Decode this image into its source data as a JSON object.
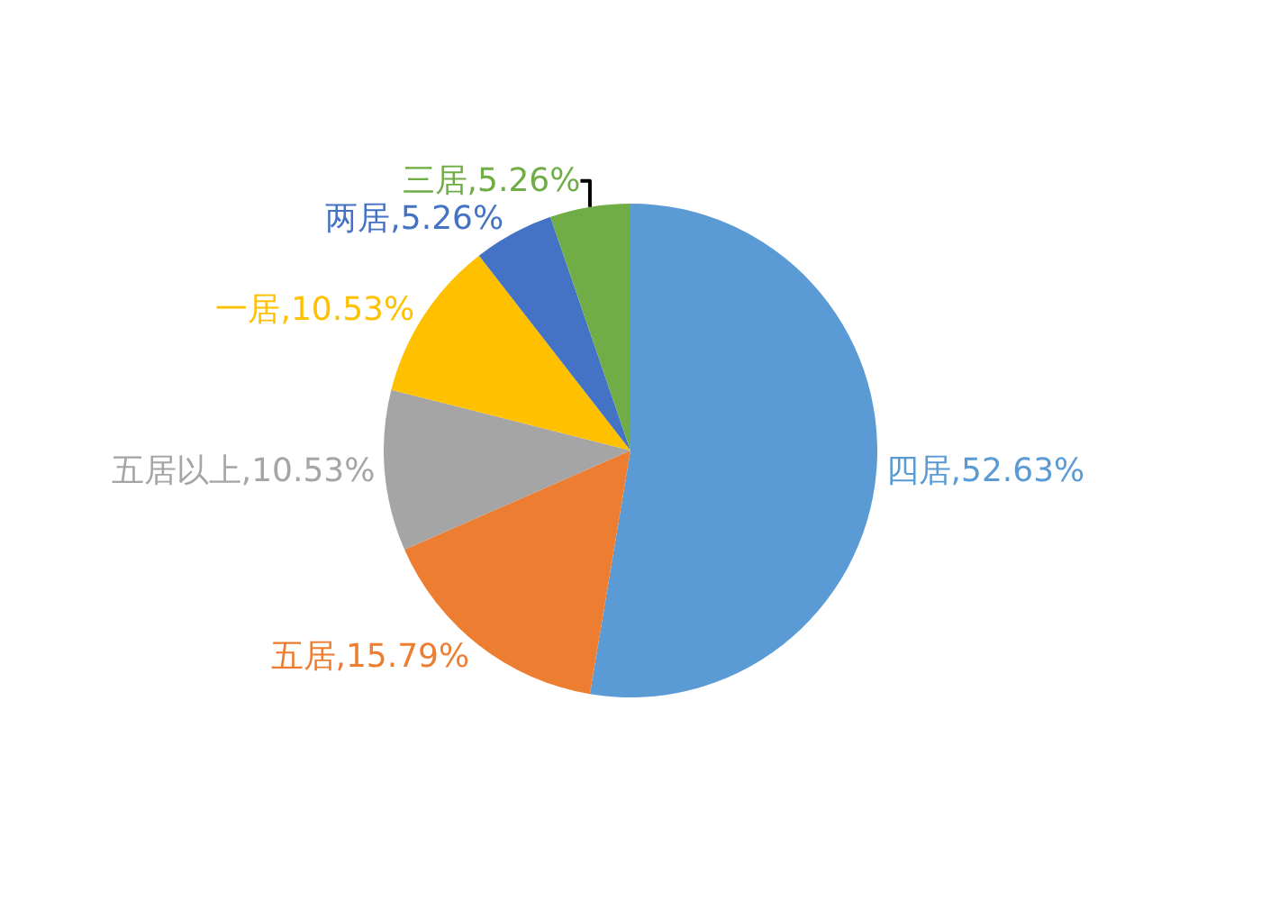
{
  "chart_data": {
    "type": "pie",
    "categories": [
      "四居",
      "五居",
      "五居以上",
      "一居",
      "两居",
      "三居"
    ],
    "values": [
      52.63,
      15.79,
      10.53,
      10.53,
      5.26,
      5.26
    ],
    "value_labels": [
      "52.63%",
      "15.79%",
      "10.53%",
      "10.53%",
      "5.26%",
      "5.26%"
    ],
    "colors": [
      "#5b9bd5",
      "#ed7d31",
      "#a5a5a5",
      "#ffc000",
      "#4472c4",
      "#70ad47"
    ],
    "legend": false
  }
}
